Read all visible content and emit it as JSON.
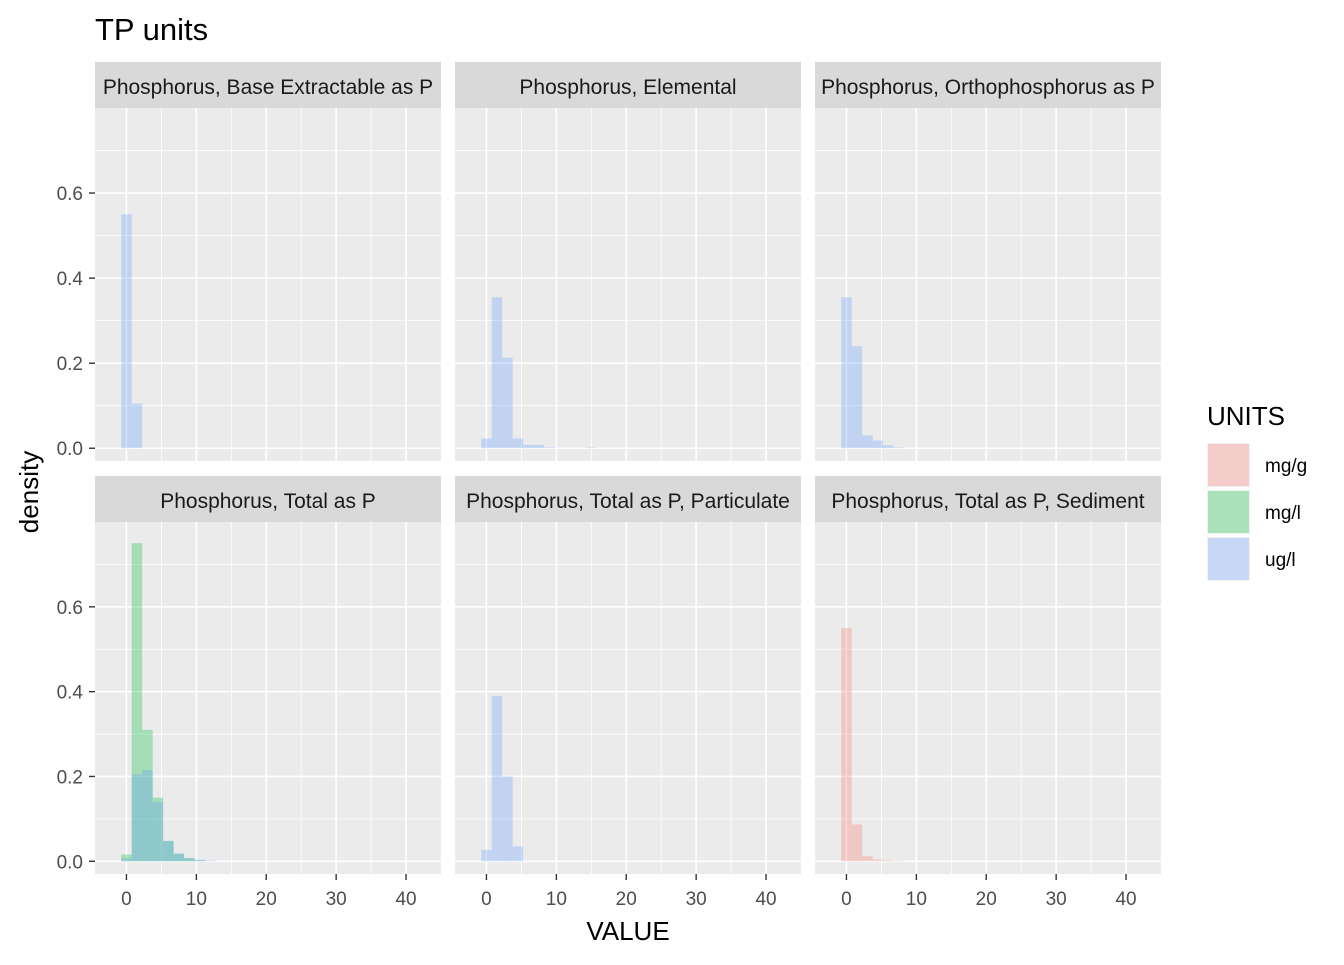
{
  "title": "TP units",
  "xlabel": "VALUE",
  "ylabel": "density",
  "legend": {
    "title": "UNITS",
    "position": "right",
    "items": [
      {
        "label": "mg/g",
        "color": "#F8766D"
      },
      {
        "label": "mg/l",
        "color": "#00BA38"
      },
      {
        "label": "ug/l",
        "color": "#619CFF"
      }
    ]
  },
  "chart_data": {
    "type": "histogram",
    "title": "TP units",
    "xlabel": "VALUE",
    "ylabel": "density",
    "xlim": [
      -4.5,
      45
    ],
    "ylim": [
      -0.03,
      0.8
    ],
    "x_ticks": [
      0,
      10,
      20,
      30,
      40
    ],
    "y_ticks": [
      0.0,
      0.2,
      0.4,
      0.6
    ],
    "y_tick_labels": [
      "0.0",
      "0.2",
      "0.4",
      "0.6"
    ],
    "bin_width": 1.5,
    "grid": true,
    "fill_alpha": 0.3,
    "facets": [
      {
        "label": "Phosphorus, Base Extractable as P",
        "series": [
          {
            "unit": "ug/l",
            "bins": [
              [
                -0.75,
                0.55
              ],
              [
                0.75,
                0.105
              ]
            ]
          }
        ]
      },
      {
        "label": "Phosphorus, Elemental",
        "series": [
          {
            "unit": "ug/l",
            "bins": [
              [
                -0.75,
                0.023
              ],
              [
                0.75,
                0.355
              ],
              [
                2.25,
                0.213
              ],
              [
                3.75,
                0.023
              ],
              [
                5.25,
                0.008
              ],
              [
                6.75,
                0.008
              ],
              [
                8.25,
                0.002
              ],
              [
                14.25,
                0.002
              ]
            ]
          }
        ]
      },
      {
        "label": "Phosphorus, Orthophosphorus as P",
        "series": [
          {
            "unit": "ug/l",
            "bins": [
              [
                -0.75,
                0.355
              ],
              [
                0.75,
                0.24
              ],
              [
                2.25,
                0.03
              ],
              [
                3.75,
                0.018
              ],
              [
                5.25,
                0.007
              ],
              [
                6.75,
                0.002
              ]
            ]
          }
        ]
      },
      {
        "label": "Phosphorus, Total as P",
        "series": [
          {
            "unit": "mg/l",
            "bins": [
              [
                -0.75,
                0.016
              ],
              [
                0.75,
                0.75
              ],
              [
                2.25,
                0.31
              ],
              [
                3.75,
                0.15
              ],
              [
                5.25,
                0.048
              ],
              [
                6.75,
                0.018
              ],
              [
                8.25,
                0.007
              ],
              [
                9.75,
                0.002
              ]
            ]
          },
          {
            "unit": "ug/l",
            "bins": [
              [
                -0.75,
                0.007
              ],
              [
                0.75,
                0.205
              ],
              [
                2.25,
                0.215
              ],
              [
                3.75,
                0.14
              ],
              [
                5.25,
                0.048
              ],
              [
                6.75,
                0.018
              ],
              [
                8.25,
                0.008
              ],
              [
                9.75,
                0.004
              ],
              [
                11.25,
                0.002
              ]
            ]
          }
        ]
      },
      {
        "label": "Phosphorus, Total as P, Particulate",
        "series": [
          {
            "unit": "ug/l",
            "bins": [
              [
                -0.75,
                0.027
              ],
              [
                0.75,
                0.39
              ],
              [
                2.25,
                0.2
              ],
              [
                3.75,
                0.035
              ]
            ]
          }
        ]
      },
      {
        "label": "Phosphorus, Total as P, Sediment",
        "series": [
          {
            "unit": "mg/g",
            "bins": [
              [
                -0.75,
                0.55
              ],
              [
                0.75,
                0.087
              ],
              [
                2.25,
                0.012
              ],
              [
                3.75,
                0.004
              ],
              [
                5.25,
                0.002
              ],
              [
                6.75,
                0.001
              ]
            ]
          }
        ]
      }
    ]
  }
}
